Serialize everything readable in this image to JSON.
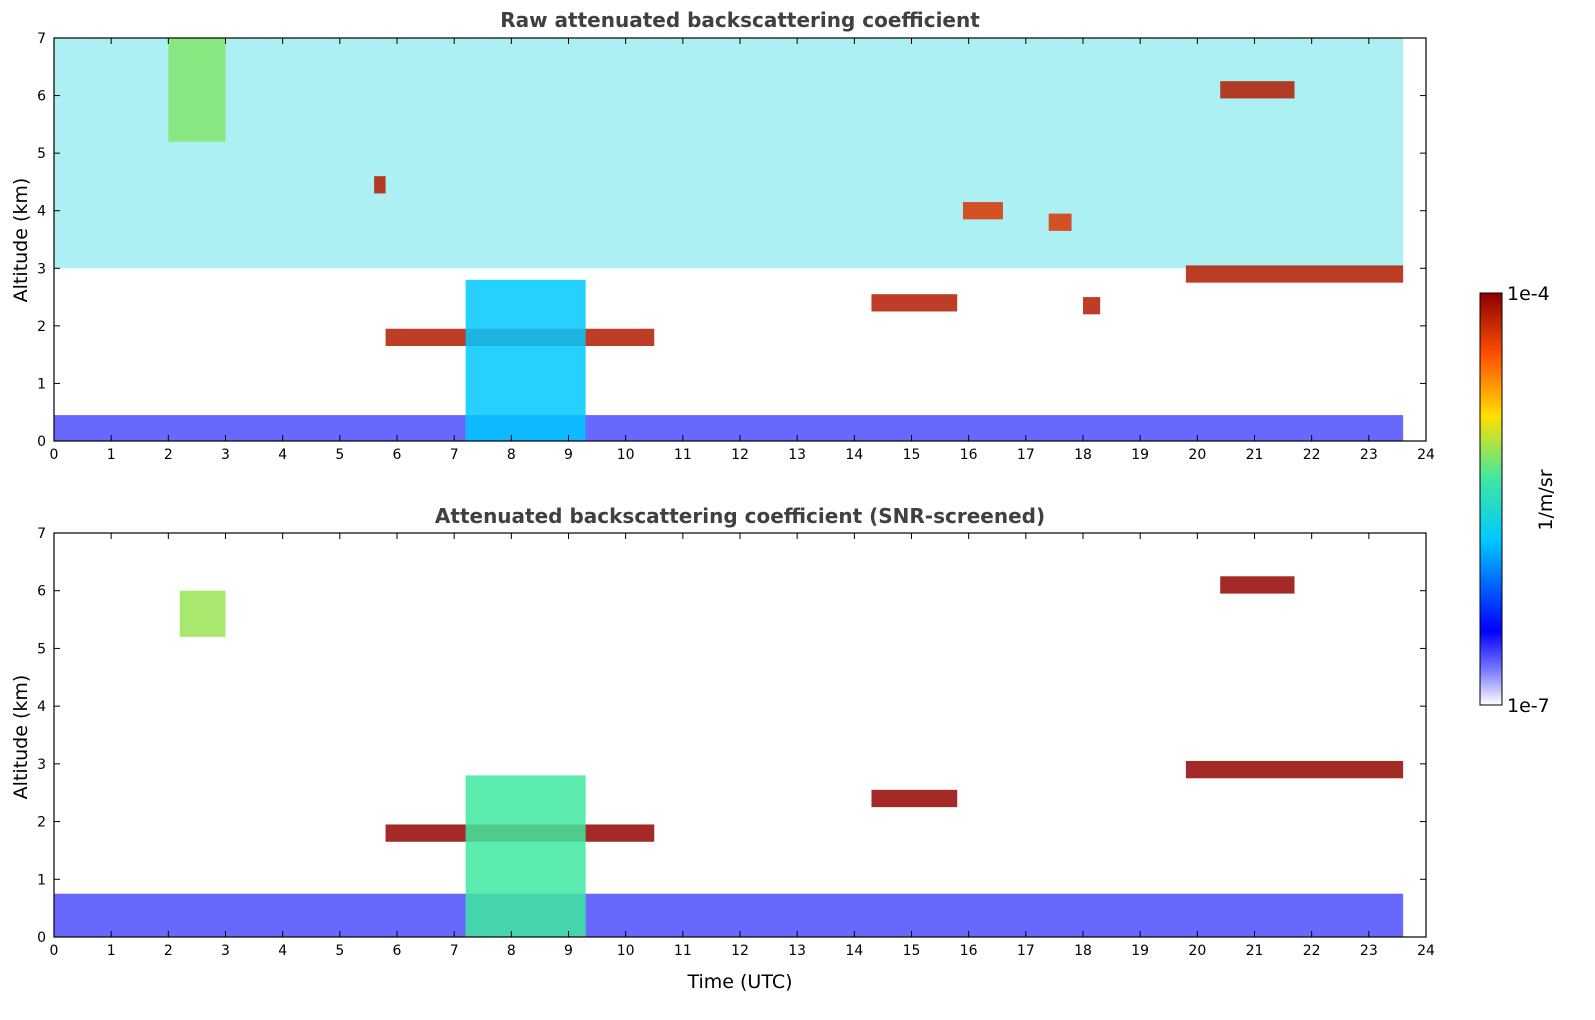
{
  "chart_data": [
    {
      "type": "heatmap",
      "title": "Raw attenuated backscattering coefficient",
      "xlabel": "",
      "ylabel": "Altitude (km)",
      "xlim": [
        0,
        24
      ],
      "ylim": [
        0,
        7
      ],
      "xticks": [
        "0",
        "1",
        "2",
        "3",
        "4",
        "5",
        "6",
        "7",
        "8",
        "9",
        "10",
        "11",
        "12",
        "13",
        "14",
        "15",
        "16",
        "17",
        "18",
        "19",
        "20",
        "21",
        "22",
        "23",
        "24"
      ],
      "yticks": [
        "0",
        "1",
        "2",
        "3",
        "4",
        "5",
        "6",
        "7"
      ],
      "data_end_time": 23.6,
      "features": [
        {
          "name": "near-surface layer",
          "t0": 0,
          "t1": 23.6,
          "z0": 0,
          "z1": 0.45,
          "level": 0.12
        },
        {
          "name": "noise background (upper)",
          "t0": 0,
          "t1": 23.6,
          "z0": 3,
          "z1": 7,
          "level": 0.45
        },
        {
          "name": "cloud layer A",
          "t0": 5.8,
          "t1": 10.5,
          "z_approx": 1.8,
          "level": 0.95
        },
        {
          "name": "virga / precipitation",
          "t0": 7.2,
          "t1": 9.3,
          "z0": 0,
          "z1": 2.8,
          "level": 0.4
        },
        {
          "name": "cirrus fallstreak",
          "t0": 2.0,
          "t1": 3.0,
          "z0": 5.2,
          "z1": 7,
          "level": 0.6
        },
        {
          "name": "cloud B",
          "t0": 14.3,
          "t1": 15.8,
          "z_approx": 2.4,
          "level": 0.95
        },
        {
          "name": "cloud C",
          "t0": 19.8,
          "t1": 23.6,
          "z_approx": 2.9,
          "level": 0.95
        },
        {
          "name": "cloud D",
          "t0": 20.4,
          "t1": 21.7,
          "z_approx": 6.1,
          "level": 0.95
        },
        {
          "name": "small cloud",
          "t0": 5.6,
          "t1": 5.8,
          "z_approx": 4.45,
          "level": 0.95
        },
        {
          "name": "small cloud",
          "t0": 15.9,
          "t1": 16.6,
          "z_approx": 4.0,
          "level": 0.9
        },
        {
          "name": "small cloud",
          "t0": 17.4,
          "t1": 17.8,
          "z_approx": 3.8,
          "level": 0.9
        },
        {
          "name": "small cloud",
          "t0": 18.0,
          "t1": 18.3,
          "z_approx": 2.35,
          "level": 0.95
        }
      ]
    },
    {
      "type": "heatmap",
      "title": "Attenuated backscattering coefficient (SNR-screened)",
      "xlabel": "Time (UTC)",
      "ylabel": "Altitude (km)",
      "xlim": [
        0,
        24
      ],
      "ylim": [
        0,
        7
      ],
      "xticks": [
        "0",
        "1",
        "2",
        "3",
        "4",
        "5",
        "6",
        "7",
        "8",
        "9",
        "10",
        "11",
        "12",
        "13",
        "14",
        "15",
        "16",
        "17",
        "18",
        "19",
        "20",
        "21",
        "22",
        "23",
        "24"
      ],
      "yticks": [
        "0",
        "1",
        "2",
        "3",
        "4",
        "5",
        "6",
        "7"
      ],
      "data_end_time": 23.6,
      "features": [
        {
          "name": "boundary layer",
          "t0": 0,
          "t1": 23.6,
          "z0": 0,
          "z1": 0.75,
          "level": 0.12
        },
        {
          "name": "cloud layer A",
          "t0": 5.8,
          "t1": 10.5,
          "z_approx": 1.8,
          "level": 0.99
        },
        {
          "name": "virga / precipitation",
          "t0": 7.2,
          "t1": 9.3,
          "z0": 0,
          "z1": 2.8,
          "level": 0.55
        },
        {
          "name": "cirrus patch",
          "t0": 2.2,
          "t1": 3.0,
          "z0": 5.2,
          "z1": 6.0,
          "level": 0.62
        },
        {
          "name": "cloud B",
          "t0": 14.3,
          "t1": 15.8,
          "z_approx": 2.4,
          "level": 0.99
        },
        {
          "name": "cloud C",
          "t0": 19.8,
          "t1": 23.6,
          "z_approx": 2.9,
          "level": 0.99
        },
        {
          "name": "cloud D",
          "t0": 20.4,
          "t1": 21.7,
          "z_approx": 6.1,
          "level": 0.99
        }
      ]
    }
  ],
  "colorbar": {
    "max_label": "1e-4",
    "min_label": "1e-7",
    "unit_label": "1/m/sr",
    "colors": [
      "#ffffff",
      "#0000ff",
      "#00c8ff",
      "#40e8a0",
      "#ffe000",
      "#ff6000",
      "#8b0000"
    ]
  }
}
